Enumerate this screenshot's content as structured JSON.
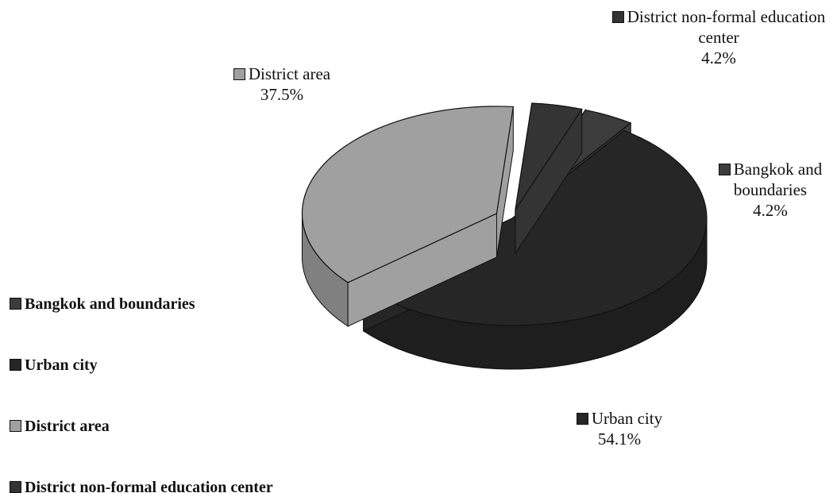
{
  "chart_data": {
    "type": "pie",
    "categories": [
      "Bangkok and boundaries",
      "Urban city",
      "District area",
      "District non-formal education center"
    ],
    "values": [
      4.2,
      54.1,
      37.5,
      4.2
    ],
    "value_labels": [
      "4.2%",
      "54.1%",
      "37.5%",
      "4.2%"
    ],
    "colors": [
      "#3c3c3c",
      "#262626",
      "#a0a0a0",
      "#343434"
    ],
    "legend": "left"
  }
}
